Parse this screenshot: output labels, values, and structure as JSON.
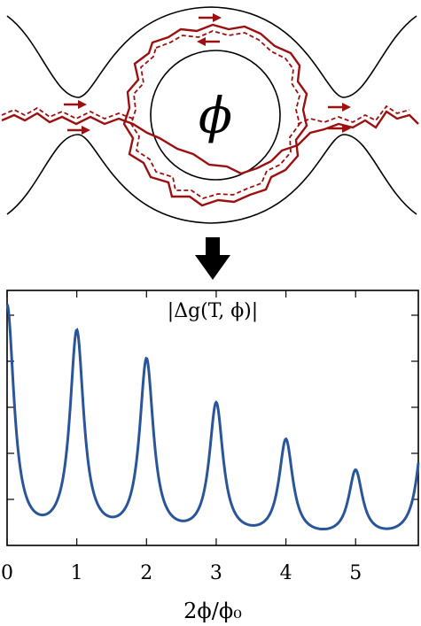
{
  "diagram": {
    "flux_symbol": "ϕ",
    "path_color": "#9b1111",
    "outline_color": "#000000"
  },
  "arrow": {
    "icon": "down-arrow-icon",
    "color": "#000000"
  },
  "chart_data": {
    "type": "line",
    "title": "|Δg(T, ϕ)|",
    "xlabel": "2ϕ/ϕ₀",
    "ylabel": "",
    "xlim": [
      0,
      5.9
    ],
    "ylim": [
      0,
      1.0
    ],
    "x_ticks": [
      0,
      1,
      2,
      3,
      4,
      5
    ],
    "x_tick_labels": [
      "0",
      "1",
      "2",
      "3",
      "4",
      "5"
    ],
    "y_tick_labels": [],
    "grid": false,
    "line_color": "#2a5599",
    "peaks": [
      {
        "x": 0,
        "y": 0.93
      },
      {
        "x": 1,
        "y": 0.82
      },
      {
        "x": 2,
        "y": 0.71
      },
      {
        "x": 3,
        "y": 0.54
      },
      {
        "x": 4,
        "y": 0.4
      },
      {
        "x": 5,
        "y": 0.28
      }
    ],
    "baseline": 0.02
  }
}
